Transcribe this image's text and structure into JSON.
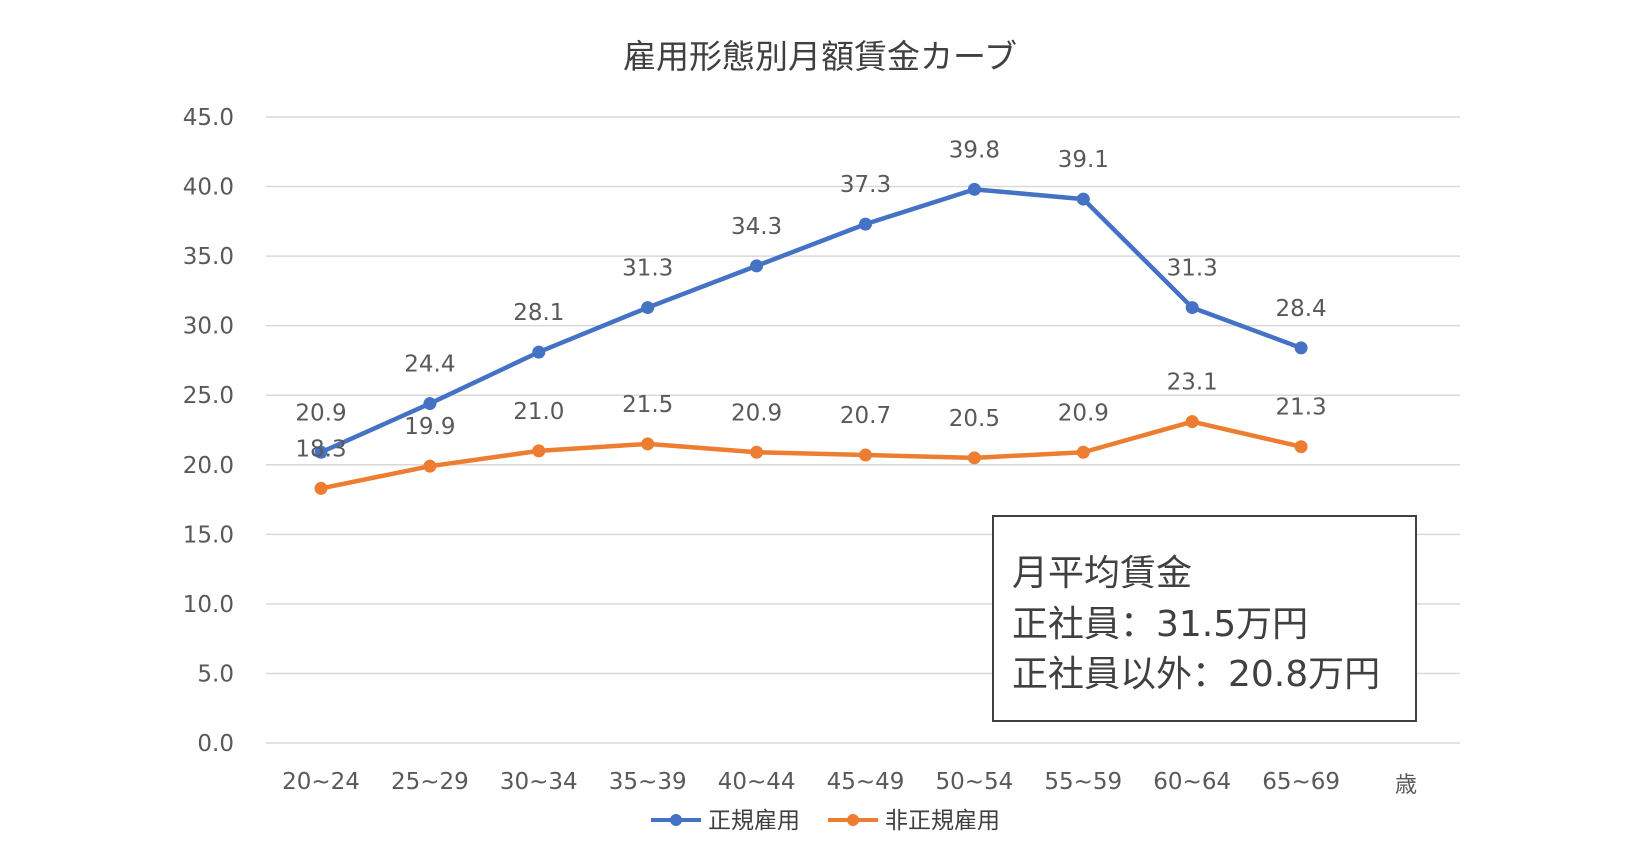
{
  "chart_data": {
    "type": "line",
    "title": "雇用形態別月額賃金カーブ",
    "categories": [
      "20~24",
      "25~29",
      "30~34",
      "35~39",
      "40~44",
      "45~49",
      "50~54",
      "55~59",
      "60~64",
      "65~69"
    ],
    "x_unit": "歳",
    "ylim": [
      0,
      45
    ],
    "ytick_labels": [
      "0.0",
      "5.0",
      "10.0",
      "15.0",
      "20.0",
      "25.0",
      "30.0",
      "35.0",
      "40.0",
      "45.0"
    ],
    "grid": true,
    "legend_position": "bottom",
    "series": [
      {
        "name": "正規雇用",
        "color": "#4472C4",
        "values": [
          20.9,
          24.4,
          28.1,
          31.3,
          34.3,
          37.3,
          39.8,
          39.1,
          31.3,
          28.4
        ],
        "labels": [
          "20.9",
          "24.4",
          "28.1",
          "31.3",
          "34.3",
          "37.3",
          "39.8",
          "39.1",
          "31.3",
          "28.4"
        ]
      },
      {
        "name": "非正規雇用",
        "color": "#ED7D31",
        "values": [
          18.3,
          19.9,
          21.0,
          21.5,
          20.9,
          20.7,
          20.5,
          20.9,
          23.1,
          21.3
        ],
        "labels": [
          "18.3",
          "19.9",
          "21.0",
          "21.5",
          "20.9",
          "20.7",
          "20.5",
          "20.9",
          "23.1",
          "21.3"
        ]
      }
    ],
    "annotation": {
      "title": "月平均賃金",
      "lines": [
        "正社員：31.5万円",
        "正社員以外：20.8万円"
      ]
    }
  }
}
